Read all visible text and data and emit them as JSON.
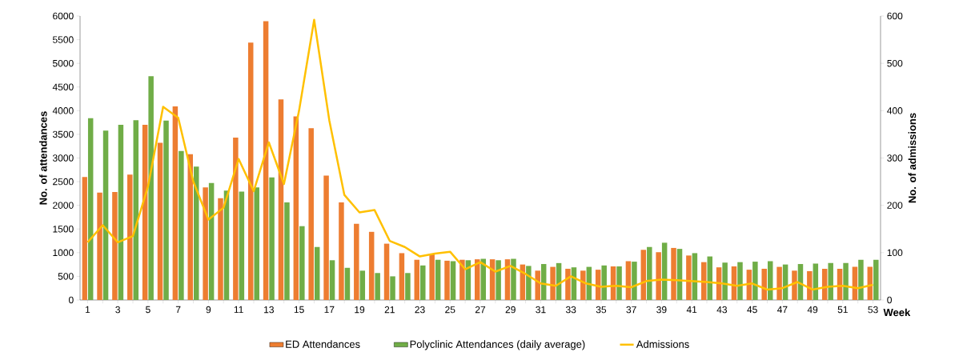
{
  "chart_data": {
    "type": "bar",
    "xlabel": "Week",
    "ylabel": "No. of attendances",
    "y2label": "No. of admissions",
    "categories": [
      "1",
      null,
      "3",
      null,
      "5",
      null,
      "7",
      null,
      "9",
      null,
      "11",
      null,
      "13",
      null,
      "15",
      null,
      "17",
      null,
      "19",
      null,
      "21",
      null,
      "23",
      null,
      "25",
      null,
      "27",
      null,
      "29",
      null,
      "31",
      null,
      "33",
      null,
      "35",
      null,
      "37",
      null,
      "39",
      null,
      "41",
      null,
      "43",
      null,
      "45",
      null,
      "47",
      null,
      "49",
      null,
      "51",
      null,
      "53"
    ],
    "series": [
      {
        "name": "ED Attendances",
        "color": "#ed7d31",
        "values": [
          2600,
          2270,
          2280,
          2650,
          3700,
          3320,
          4090,
          3080,
          2380,
          2150,
          3430,
          5440,
          5890,
          4240,
          3880,
          3630,
          2630,
          2060,
          1610,
          1440,
          1190,
          990,
          850,
          970,
          830,
          850,
          860,
          860,
          860,
          750,
          620,
          700,
          660,
          620,
          640,
          710,
          820,
          1060,
          1010,
          1100,
          940,
          800,
          690,
          710,
          640,
          660,
          700,
          620,
          610,
          660,
          660,
          700,
          700
        ]
      },
      {
        "name": "Polyclinic Attendances (daily average)",
        "color": "#70ad47",
        "values": [
          3840,
          3580,
          3700,
          3800,
          4730,
          3790,
          3150,
          2820,
          2470,
          2310,
          2290,
          2380,
          2590,
          2060,
          1560,
          1120,
          840,
          680,
          620,
          570,
          500,
          570,
          730,
          850,
          820,
          840,
          870,
          840,
          870,
          720,
          760,
          780,
          690,
          700,
          730,
          710,
          810,
          1120,
          1210,
          1080,
          990,
          920,
          790,
          800,
          810,
          820,
          750,
          760,
          770,
          780,
          780,
          850,
          850
        ]
      },
      {
        "name": "Admissions",
        "type": "line",
        "axis": "y2",
        "color": "#ffc000",
        "values": [
          122,
          158,
          122,
          135,
          240,
          408,
          385,
          250,
          170,
          195,
          298,
          230,
          333,
          245,
          400,
          592,
          380,
          222,
          185,
          190,
          125,
          112,
          92,
          98,
          102,
          65,
          80,
          60,
          72,
          55,
          35,
          30,
          50,
          35,
          28,
          30,
          27,
          40,
          43,
          42,
          40,
          38,
          35,
          30,
          35,
          22,
          25,
          38,
          22,
          28,
          30,
          25,
          32
        ]
      }
    ],
    "ylim": [
      0,
      6000
    ],
    "yticks": [
      0,
      500,
      1000,
      1500,
      2000,
      2500,
      3000,
      3500,
      4000,
      4500,
      5000,
      5500,
      6000
    ],
    "y2lim": [
      0,
      600
    ],
    "y2ticks": [
      0,
      100,
      200,
      300,
      400,
      500,
      600
    ],
    "legend": "bottom"
  }
}
